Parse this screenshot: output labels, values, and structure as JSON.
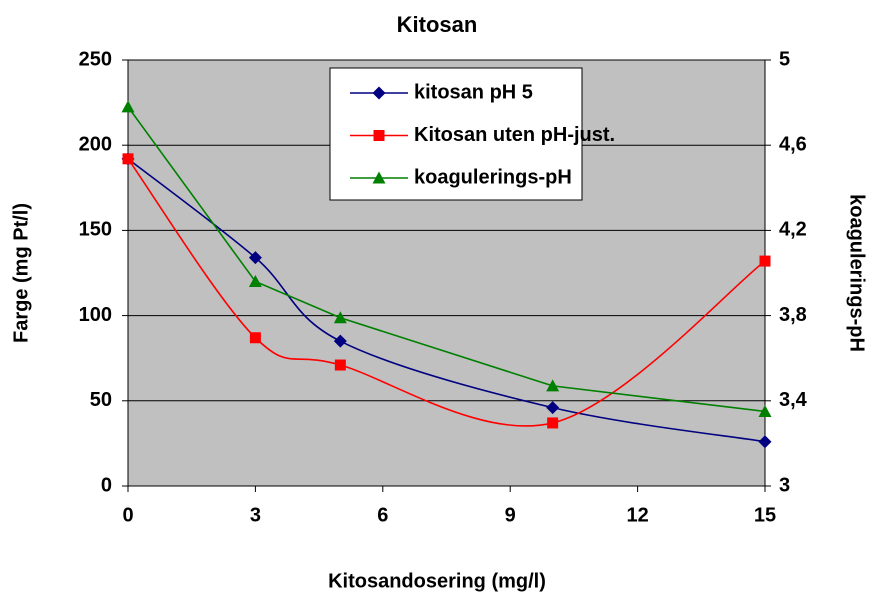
{
  "chart_data": {
    "type": "line",
    "title": "Kitosan",
    "x_label": "Kitosandosering (mg/l)",
    "y_label": "Farge (mg Pt/l)",
    "y2_label": "koagulerings-pH",
    "x": [
      0,
      3,
      5,
      10,
      15
    ],
    "xlim": [
      0,
      15
    ],
    "xticks": [
      0,
      3,
      6,
      9,
      12,
      15
    ],
    "ylim": [
      0,
      250
    ],
    "yticks": [
      0,
      50,
      100,
      150,
      200,
      250
    ],
    "y2lim": [
      3,
      5
    ],
    "y2ticks": [
      3,
      {
        "value": 3.4,
        "label": "3,4"
      },
      {
        "value": 3.8,
        "label": "3,8"
      },
      {
        "value": 4.2,
        "label": "4,2"
      },
      {
        "value": 4.6,
        "label": "4,6"
      },
      5
    ],
    "grid": true,
    "legend": "top-right",
    "background": "#c0c0c0",
    "series": [
      {
        "name": "kitosan pH 5",
        "color": "#000080",
        "marker": "diamond",
        "values": [
          192,
          134,
          85,
          46,
          26
        ]
      },
      {
        "name": "Kitosan uten pH-just.",
        "color": "#ff0000",
        "marker": "square",
        "values": [
          192,
          87,
          71,
          37,
          132
        ]
      },
      {
        "name": "koagulerings-pH",
        "color": "#008000",
        "marker": "triangle",
        "axis": "y2",
        "values": [
          4.78,
          3.96,
          3.79,
          3.47,
          3.35
        ]
      }
    ]
  }
}
